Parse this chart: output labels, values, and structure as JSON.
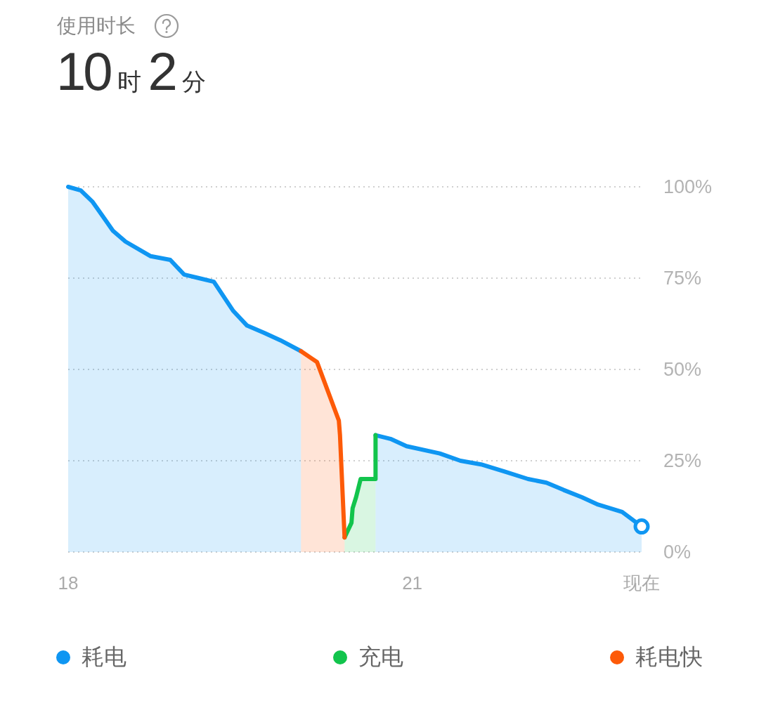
{
  "chart_data": {
    "type": "area",
    "title": "使用时长",
    "subtitle": "10时2分",
    "xlim": [
      18,
      23
    ],
    "xticks": [
      18,
      21,
      {
        "value": 23,
        "label": "现在"
      }
    ],
    "ylim": [
      0,
      100
    ],
    "yticks": [
      {
        "value": 0,
        "label": "0%"
      },
      {
        "value": 25,
        "label": "25%"
      },
      {
        "value": 50,
        "label": "50%"
      },
      {
        "value": 75,
        "label": "75%"
      },
      {
        "value": 100,
        "label": "100%"
      }
    ],
    "grid": "y",
    "legend": "bottom",
    "series": [
      {
        "name": "耗电",
        "color": "#0f96f2",
        "x": [
          18,
          18.11,
          18.21,
          18.3,
          18.39,
          18.5,
          18.72,
          18.89,
          19.01,
          19.14,
          19.27,
          19.44,
          19.56,
          19.71,
          19.85,
          20.03,
          20.4,
          20.68,
          20.81,
          20.95,
          21.24,
          21.42,
          21.6,
          21.81,
          22.01,
          22.17,
          22.32,
          22.48,
          22.62,
          22.83,
          23
        ],
        "values": [
          100,
          99,
          96,
          92,
          88,
          85,
          81,
          80,
          76,
          75,
          74,
          66,
          62,
          60,
          58,
          55,
          null,
          32,
          31,
          29,
          27,
          25,
          24,
          22,
          20,
          19,
          17,
          15,
          13,
          11,
          7
        ]
      },
      {
        "name": "充电",
        "color": "#12c44c",
        "x": [
          20.41,
          20.47,
          20.48,
          20.51,
          20.55,
          20.68,
          20.68
        ],
        "values": [
          4,
          8,
          12,
          15,
          20,
          20,
          32
        ]
      },
      {
        "name": "耗电快",
        "color": "#fd5a08",
        "x": [
          20.03,
          20.17,
          20.36,
          20.37,
          20.41
        ],
        "values": [
          55,
          52,
          36,
          32,
          4
        ]
      },
      {
        "type": "scatter",
        "color": "#0f96f2",
        "marker": "circle",
        "x": [
          23
        ],
        "values": [
          7
        ]
      }
    ]
  }
}
